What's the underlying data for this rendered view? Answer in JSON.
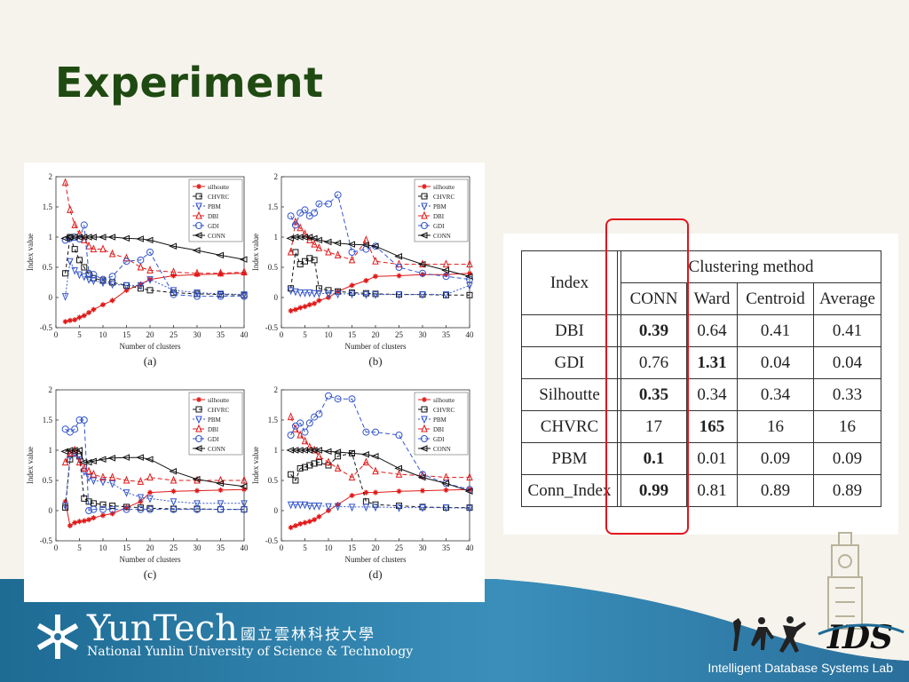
{
  "slide": {
    "title": "Experiment"
  },
  "footer": {
    "logo_name": "YunTech",
    "logo_chinese": "國立雲林科技大學",
    "logo_subtitle": "National Yunlin University of Science & Technology",
    "lab_name": "Intelligent Database Systems Lab",
    "lab_logo_text": "IDS"
  },
  "colors": {
    "title": "#1f4a12",
    "footer_band": "#2a6f9c",
    "highlight_box": "#e2141c"
  },
  "legend_labels": [
    "silhoutte",
    "CHVRC",
    "PBM",
    "DBI",
    "GDI",
    "CONN"
  ],
  "table": {
    "index_header": "Index",
    "group_header": "Clustering method",
    "columns": [
      "CONN",
      "Ward",
      "Centroid",
      "Average"
    ],
    "rows": [
      {
        "index": "DBI",
        "values": [
          "0.39",
          "0.64",
          "0.41",
          "0.41"
        ],
        "bold": 0
      },
      {
        "index": "GDI",
        "values": [
          "0.76",
          "1.31",
          "0.04",
          "0.04"
        ],
        "bold": 1
      },
      {
        "index": "Silhoutte",
        "values": [
          "0.35",
          "0.34",
          "0.34",
          "0.33"
        ],
        "bold": 0
      },
      {
        "index": "CHVRC",
        "values": [
          "17",
          "165",
          "16",
          "16"
        ],
        "bold": 1
      },
      {
        "index": "PBM",
        "values": [
          "0.1",
          "0.01",
          "0.09",
          "0.09"
        ],
        "bold": 0
      },
      {
        "index": "Conn_Index",
        "values": [
          "0.99",
          "0.81",
          "0.89",
          "0.89"
        ],
        "bold": 0
      }
    ]
  },
  "chart_data": [
    {
      "type": "line",
      "caption": "(a)",
      "xlabel": "Number of clusters",
      "ylabel": "Index value",
      "xlim": [
        0,
        40
      ],
      "ylim": [
        -0.5,
        2
      ],
      "xticks": [
        0,
        5,
        10,
        15,
        20,
        25,
        30,
        35,
        40
      ],
      "yticks": [
        -0.5,
        0,
        0.5,
        1,
        1.5,
        2
      ],
      "legend": "top-right",
      "x": [
        2,
        3,
        4,
        5,
        6,
        7,
        8,
        10,
        12,
        15,
        18,
        20,
        25,
        30,
        35,
        40
      ],
      "series": [
        {
          "name": "silhoutte",
          "values": [
            -0.4,
            -0.38,
            -0.37,
            -0.33,
            -0.3,
            -0.25,
            -0.2,
            -0.12,
            -0.05,
            0.12,
            0.22,
            0.3,
            0.36,
            0.38,
            0.39,
            0.4
          ]
        },
        {
          "name": "CHVRC",
          "values": [
            0.4,
            1.0,
            0.8,
            0.62,
            0.5,
            0.38,
            0.32,
            0.28,
            0.25,
            0.2,
            0.15,
            0.12,
            0.08,
            0.06,
            0.05,
            0.04
          ]
        },
        {
          "name": "PBM",
          "values": [
            0.02,
            0.6,
            0.45,
            0.38,
            0.35,
            0.3,
            0.28,
            0.25,
            0.22,
            0.2,
            0.2,
            0.3,
            0.12,
            0.08,
            0.06,
            0.05
          ]
        },
        {
          "name": "DBI",
          "values": [
            1.9,
            1.45,
            1.2,
            1.05,
            0.95,
            0.85,
            0.8,
            0.8,
            0.72,
            0.65,
            0.5,
            0.45,
            0.42,
            0.4,
            0.4,
            0.42
          ]
        },
        {
          "name": "GDI",
          "values": [
            0.95,
            0.98,
            1.0,
            0.97,
            1.2,
            0.4,
            0.38,
            0.3,
            0.35,
            0.6,
            0.62,
            0.75,
            0.05,
            0.02,
            0.02,
            0.02
          ]
        },
        {
          "name": "CONN",
          "values": [
            0.98,
            1.0,
            1.0,
            1.0,
            1.0,
            1.0,
            1.0,
            1.0,
            1.0,
            0.98,
            0.97,
            0.95,
            0.85,
            0.78,
            0.7,
            0.63
          ]
        }
      ]
    },
    {
      "type": "line",
      "caption": "(b)",
      "xlabel": "Number of clusters",
      "ylabel": "Index value",
      "xlim": [
        0,
        40
      ],
      "ylim": [
        -0.5,
        2
      ],
      "xticks": [
        0,
        5,
        10,
        15,
        20,
        25,
        30,
        35,
        40
      ],
      "yticks": [
        -0.5,
        0,
        0.5,
        1,
        1.5,
        2
      ],
      "legend": "top-right",
      "x": [
        2,
        3,
        4,
        5,
        6,
        7,
        8,
        10,
        12,
        15,
        18,
        20,
        25,
        30,
        35,
        40
      ],
      "series": [
        {
          "name": "silhoutte",
          "values": [
            -0.22,
            -0.2,
            -0.17,
            -0.15,
            -0.12,
            -0.1,
            -0.05,
            0.0,
            0.1,
            0.2,
            0.28,
            0.35,
            0.36,
            0.38,
            0.38,
            0.4
          ]
        },
        {
          "name": "CHVRC",
          "values": [
            0.15,
            0.75,
            0.55,
            0.6,
            0.65,
            0.62,
            0.15,
            0.12,
            0.1,
            0.08,
            0.07,
            0.06,
            0.05,
            0.05,
            0.04,
            0.04
          ]
        },
        {
          "name": "PBM",
          "values": [
            0.12,
            0.1,
            0.08,
            0.08,
            0.08,
            0.07,
            0.07,
            0.06,
            0.06,
            0.06,
            0.05,
            0.05,
            0.05,
            0.05,
            0.05,
            0.2
          ]
        },
        {
          "name": "DBI",
          "values": [
            0.75,
            1.25,
            1.15,
            1.05,
            0.95,
            0.88,
            0.82,
            0.75,
            0.7,
            0.62,
            0.95,
            0.6,
            0.55,
            0.55,
            0.55,
            0.55
          ]
        },
        {
          "name": "GDI",
          "values": [
            1.35,
            1.2,
            1.4,
            1.45,
            1.35,
            1.4,
            1.55,
            1.55,
            1.7,
            0.75,
            0.8,
            0.85,
            0.5,
            0.4,
            0.35,
            0.3
          ]
        },
        {
          "name": "CONN",
          "values": [
            0.98,
            1.0,
            1.0,
            1.0,
            1.0,
            0.98,
            0.95,
            0.92,
            0.9,
            0.88,
            0.87,
            0.85,
            0.68,
            0.55,
            0.45,
            0.35
          ]
        }
      ]
    },
    {
      "type": "line",
      "caption": "(c)",
      "xlabel": "Number of clusters",
      "ylabel": "Index value",
      "xlim": [
        0,
        40
      ],
      "ylim": [
        -0.5,
        2
      ],
      "xticks": [
        0,
        5,
        10,
        15,
        20,
        25,
        30,
        35,
        40
      ],
      "yticks": [
        -0.5,
        0,
        0.5,
        1,
        1.5,
        2
      ],
      "legend": "top-right",
      "x": [
        2,
        3,
        4,
        5,
        6,
        7,
        8,
        10,
        12,
        15,
        18,
        20,
        25,
        30,
        35,
        40
      ],
      "series": [
        {
          "name": "silhoutte",
          "values": [
            0.15,
            -0.25,
            -0.2,
            -0.18,
            -0.17,
            -0.15,
            -0.12,
            -0.08,
            -0.05,
            0.05,
            0.15,
            0.3,
            0.32,
            0.33,
            0.34,
            0.35
          ]
        },
        {
          "name": "CHVRC",
          "values": [
            0.05,
            0.85,
            0.95,
            0.9,
            0.2,
            0.15,
            0.12,
            0.1,
            0.08,
            0.06,
            0.05,
            0.04,
            0.03,
            0.03,
            0.02,
            0.02
          ]
        },
        {
          "name": "PBM",
          "values": [
            0.08,
            0.9,
            0.95,
            0.85,
            0.65,
            0.55,
            0.5,
            0.48,
            0.45,
            0.3,
            0.22,
            0.2,
            0.15,
            0.12,
            0.12,
            0.12
          ]
        },
        {
          "name": "DBI",
          "values": [
            0.8,
            0.95,
            1.0,
            0.8,
            0.7,
            0.65,
            0.6,
            0.55,
            0.55,
            0.5,
            0.48,
            0.55,
            0.5,
            0.5,
            0.5,
            0.5
          ]
        },
        {
          "name": "GDI",
          "values": [
            1.35,
            1.3,
            1.35,
            1.5,
            1.5,
            0.0,
            0.02,
            0.02,
            0.02,
            0.02,
            0.02,
            0.02,
            0.02,
            0.02,
            0.02,
            0.02
          ]
        },
        {
          "name": "CONN",
          "values": [
            0.98,
            1.0,
            1.0,
            1.0,
            0.8,
            0.8,
            0.82,
            0.85,
            0.87,
            0.88,
            0.88,
            0.85,
            0.65,
            0.52,
            0.45,
            0.4
          ]
        }
      ]
    },
    {
      "type": "line",
      "caption": "(d)",
      "xlabel": "Number of clusters",
      "ylabel": "Index value",
      "xlim": [
        0,
        40
      ],
      "ylim": [
        -0.5,
        2
      ],
      "xticks": [
        0,
        5,
        10,
        15,
        20,
        25,
        30,
        35,
        40
      ],
      "yticks": [
        -0.5,
        0,
        0.5,
        1,
        1.5,
        2
      ],
      "legend": "top-right",
      "x": [
        2,
        3,
        4,
        5,
        6,
        7,
        8,
        10,
        12,
        15,
        18,
        20,
        25,
        30,
        35,
        40
      ],
      "series": [
        {
          "name": "silhoutte",
          "values": [
            -0.28,
            -0.25,
            -0.22,
            -0.2,
            -0.18,
            -0.15,
            -0.1,
            0.0,
            0.1,
            0.25,
            0.3,
            0.3,
            0.32,
            0.33,
            0.34,
            0.35
          ]
        },
        {
          "name": "CHVRC",
          "values": [
            0.6,
            0.5,
            0.7,
            0.72,
            0.75,
            0.78,
            0.8,
            0.75,
            0.9,
            0.95,
            0.15,
            0.1,
            0.08,
            0.06,
            0.05,
            0.05
          ]
        },
        {
          "name": "PBM",
          "values": [
            0.1,
            0.1,
            0.1,
            0.1,
            0.08,
            0.08,
            0.08,
            0.07,
            0.07,
            0.06,
            0.06,
            0.06,
            0.05,
            0.05,
            0.05,
            0.04
          ]
        },
        {
          "name": "DBI",
          "values": [
            1.55,
            1.35,
            1.25,
            1.15,
            1.05,
            1.0,
            0.9,
            0.8,
            0.7,
            0.55,
            0.8,
            0.65,
            0.6,
            0.58,
            0.55,
            0.55
          ]
        },
        {
          "name": "GDI",
          "values": [
            1.25,
            1.4,
            1.45,
            1.3,
            1.45,
            1.55,
            1.6,
            1.9,
            1.85,
            1.85,
            1.3,
            1.3,
            1.25,
            0.6,
            0.45,
            0.35
          ]
        },
        {
          "name": "CONN",
          "values": [
            1.0,
            1.0,
            1.0,
            1.0,
            1.0,
            1.0,
            1.0,
            0.98,
            0.97,
            0.95,
            0.93,
            0.9,
            0.7,
            0.55,
            0.45,
            0.32
          ]
        }
      ]
    }
  ]
}
